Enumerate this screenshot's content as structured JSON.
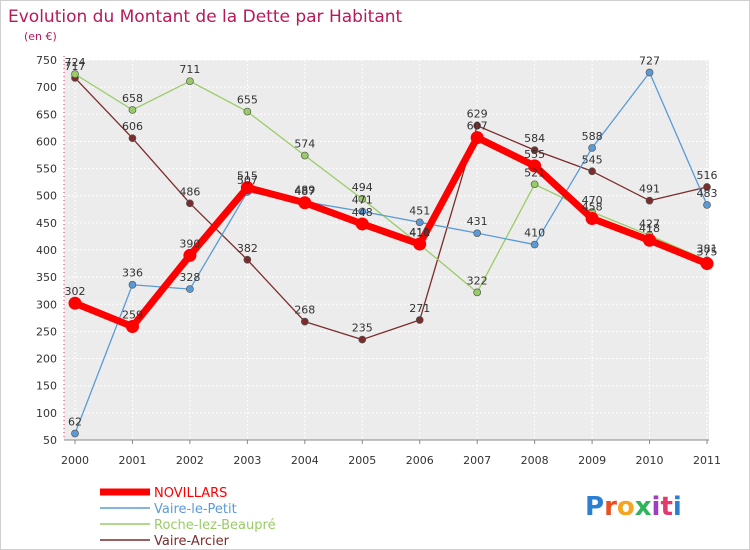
{
  "chart_data": {
    "type": "line",
    "title": "Evolution du Montant de la Dette par Habitant",
    "subtitle": "(en €)",
    "categories": [
      "2000",
      "2001",
      "2002",
      "2003",
      "2004",
      "2005",
      "2006",
      "2007",
      "2008",
      "2009",
      "2010",
      "2011"
    ],
    "ylim": [
      50,
      750
    ],
    "yticks": [
      50,
      100,
      150,
      200,
      250,
      300,
      350,
      400,
      450,
      500,
      550,
      600,
      650,
      700,
      750
    ],
    "grid": true,
    "legend_position": "bottom-left",
    "series": [
      {
        "name": "NOVILLARS",
        "color": "#ff0000",
        "values": [
          302,
          259,
          390,
          515,
          487,
          448,
          411,
          607,
          555,
          458,
          418,
          375
        ],
        "labels": [
          "302",
          "259",
          "390",
          "515",
          "487",
          "448",
          "411",
          "607",
          "555",
          "458",
          "418",
          "375"
        ]
      },
      {
        "name": "Vaire-le-Petit",
        "color": "#5b9bd5",
        "values": [
          62,
          336,
          328,
          507,
          489,
          471,
          451,
          431,
          410,
          588,
          727,
          483
        ],
        "labels": [
          "62",
          "336",
          "328",
          "507",
          "489",
          "471",
          "451",
          "431",
          "410",
          "588",
          "727",
          "483"
        ]
      },
      {
        "name": "Roche-lez-Beaupré",
        "color": "#99cc66",
        "values": [
          724,
          658,
          711,
          655,
          574,
          494,
          410,
          322,
          521,
          470,
          427,
          381
        ],
        "labels": [
          "724",
          "658",
          "711",
          "655",
          "574",
          "494",
          "410",
          "322",
          "521",
          "470",
          "427",
          "381"
        ]
      },
      {
        "name": "Vaire-Arcier",
        "color": "#7b2c2c",
        "values": [
          717,
          606,
          486,
          382,
          268,
          235,
          271,
          629,
          584,
          545,
          491,
          516
        ],
        "labels": [
          "717",
          "606",
          "486",
          "382",
          "268",
          "235",
          "271",
          "629",
          "584",
          "545",
          "491",
          "516"
        ]
      }
    ]
  },
  "logo": {
    "text": "Proxiti"
  }
}
